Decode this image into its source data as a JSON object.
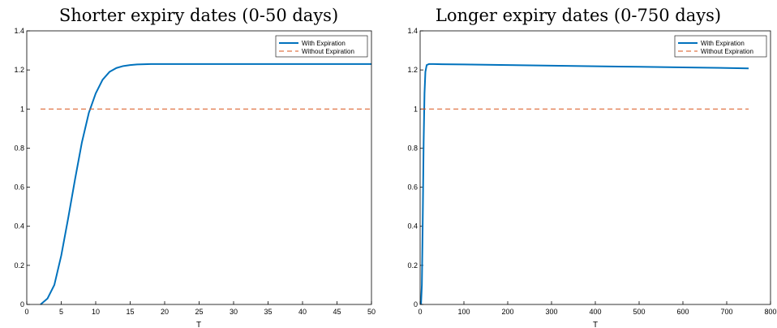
{
  "chart_data": [
    {
      "type": "line",
      "title": "Shorter expiry dates (0-50 days)",
      "xlabel": "T",
      "ylabel": "",
      "xlim": [
        0,
        50
      ],
      "ylim": [
        0,
        1.4
      ],
      "xticks": [
        0,
        5,
        10,
        15,
        20,
        25,
        30,
        35,
        40,
        45,
        50
      ],
      "yticks": [
        0,
        0.2,
        0.4,
        0.6,
        0.8,
        1,
        1.2,
        1.4
      ],
      "grid": false,
      "legend_position": "top-right",
      "series": [
        {
          "name": "With Expiration",
          "color": "#0072BD",
          "style": "solid",
          "x": [
            2,
            3,
            4,
            5,
            6,
            7,
            8,
            9,
            10,
            11,
            12,
            13,
            14,
            15,
            16,
            17,
            18,
            20,
            25,
            30,
            35,
            40,
            45,
            50
          ],
          "y": [
            0.0,
            0.03,
            0.1,
            0.25,
            0.44,
            0.64,
            0.83,
            0.98,
            1.08,
            1.15,
            1.19,
            1.21,
            1.22,
            1.225,
            1.228,
            1.229,
            1.23,
            1.23,
            1.23,
            1.23,
            1.23,
            1.23,
            1.23,
            1.23
          ]
        },
        {
          "name": "Without Expiration",
          "color": "#D95319",
          "style": "dashed",
          "x": [
            2,
            50
          ],
          "y": [
            1,
            1
          ]
        }
      ]
    },
    {
      "type": "line",
      "title": "Longer expiry dates (0-750 days)",
      "xlabel": "T",
      "ylabel": "",
      "xlim": [
        0,
        800
      ],
      "ylim": [
        0,
        1.4
      ],
      "xticks": [
        0,
        100,
        200,
        300,
        400,
        500,
        600,
        700,
        800
      ],
      "yticks": [
        0,
        0.2,
        0.4,
        0.6,
        0.8,
        1,
        1.2,
        1.4
      ],
      "grid": false,
      "legend_position": "top-right",
      "series": [
        {
          "name": "With Expiration",
          "color": "#0072BD",
          "style": "solid",
          "x": [
            2,
            4,
            6,
            8,
            10,
            12,
            15,
            20,
            30,
            50,
            100,
            200,
            300,
            400,
            500,
            600,
            700,
            750
          ],
          "y": [
            0.0,
            0.1,
            0.44,
            0.83,
            1.08,
            1.19,
            1.225,
            1.23,
            1.23,
            1.229,
            1.228,
            1.225,
            1.222,
            1.219,
            1.216,
            1.213,
            1.21,
            1.208
          ]
        },
        {
          "name": "Without Expiration",
          "color": "#D95319",
          "style": "dashed",
          "x": [
            2,
            750
          ],
          "y": [
            1,
            1
          ]
        }
      ]
    }
  ]
}
